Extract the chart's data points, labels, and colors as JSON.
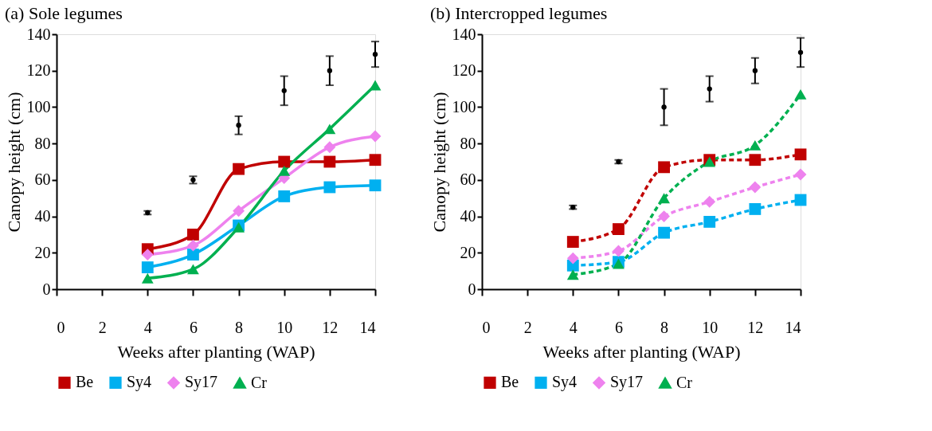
{
  "chart_data": [
    {
      "type": "line",
      "title": "(a) Sole legumes",
      "xlabel": "Weeks after planting (WAP)",
      "ylabel": "Canopy height (cm)",
      "x": [
        4,
        6,
        8,
        10,
        12,
        14
      ],
      "xlim": [
        0,
        14
      ],
      "xticks": [
        0,
        2,
        4,
        6,
        8,
        10,
        12,
        14
      ],
      "ylim": [
        0,
        140
      ],
      "yticks": [
        0,
        20,
        40,
        60,
        80,
        100,
        120,
        140
      ],
      "grid": false,
      "legend": "bottom",
      "line_style": "solid",
      "series": [
        {
          "name": "Be",
          "color": "#c00000",
          "marker": "square",
          "values": [
            22,
            30,
            66,
            70,
            70,
            71
          ]
        },
        {
          "name": "Sy4",
          "color": "#00b0f0",
          "marker": "square",
          "values": [
            12,
            19,
            35,
            51,
            56,
            57
          ]
        },
        {
          "name": "Sy17",
          "color": "#ee82ee",
          "marker": "diamond",
          "values": [
            19,
            24,
            43,
            61,
            78,
            84
          ]
        },
        {
          "name": "Cr",
          "color": "#00b050",
          "marker": "triangle",
          "values": [
            6,
            11,
            34,
            65,
            88,
            112
          ]
        },
        {
          "type": "scatter",
          "color": "#000000",
          "marker": "circle",
          "values": [
            42,
            60,
            90,
            109,
            120,
            129
          ],
          "errors": [
            1,
            2,
            5,
            8,
            8,
            7
          ]
        }
      ]
    },
    {
      "type": "line",
      "title": "(b) Intercropped legumes",
      "xlabel": "Weeks after planting (WAP)",
      "ylabel": "Canopy height (cm)",
      "x": [
        4,
        6,
        8,
        10,
        12,
        14
      ],
      "xlim": [
        0,
        14
      ],
      "xticks": [
        0,
        2,
        4,
        6,
        8,
        10,
        12,
        14
      ],
      "ylim": [
        0,
        140
      ],
      "yticks": [
        0,
        20,
        40,
        60,
        80,
        100,
        120,
        140
      ],
      "grid": false,
      "legend": "bottom",
      "line_style": "dashed",
      "series": [
        {
          "name": "Be",
          "color": "#c00000",
          "marker": "square",
          "values": [
            26,
            33,
            67,
            71,
            71,
            74
          ]
        },
        {
          "name": "Sy4",
          "color": "#00b0f0",
          "marker": "square",
          "values": [
            13,
            15,
            31,
            37,
            44,
            49
          ]
        },
        {
          "name": "Sy17",
          "color": "#ee82ee",
          "marker": "diamond",
          "values": [
            17,
            21,
            40,
            48,
            56,
            63
          ]
        },
        {
          "name": "Cr",
          "color": "#00b050",
          "marker": "triangle",
          "values": [
            8,
            14,
            50,
            70,
            79,
            107
          ]
        },
        {
          "type": "scatter",
          "color": "#000000",
          "marker": "circle",
          "values": [
            45,
            70,
            100,
            110,
            120,
            130
          ],
          "errors": [
            1,
            1,
            10,
            7,
            7,
            8
          ]
        }
      ]
    }
  ]
}
